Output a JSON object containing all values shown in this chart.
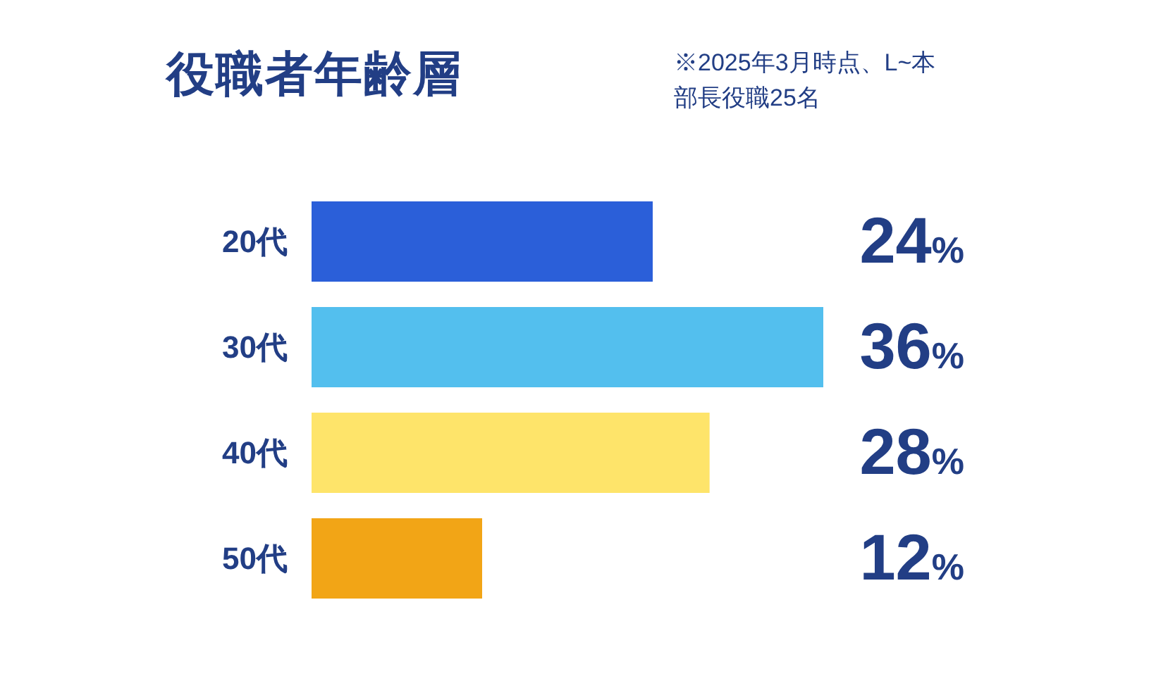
{
  "chart_data": {
    "type": "bar",
    "orientation": "horizontal",
    "title": "役職者年齢層",
    "annotations": [
      "※2025年3月時点、L~本部長役職25名"
    ],
    "categories": [
      "20代",
      "30代",
      "40代",
      "50代"
    ],
    "values": [
      24,
      36,
      28,
      12
    ],
    "colors": [
      "#2b5fd9",
      "#53bfee",
      "#fee46a",
      "#f2a516"
    ],
    "value_labels": [
      "24%",
      "36%",
      "28%",
      "12%"
    ]
  }
}
